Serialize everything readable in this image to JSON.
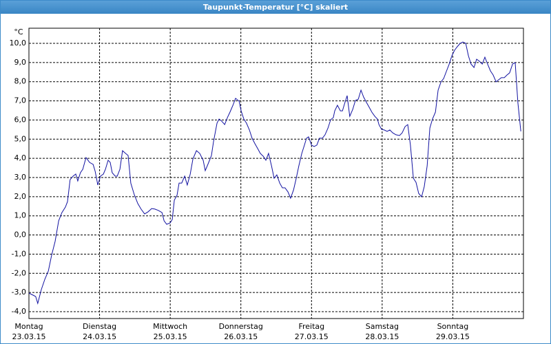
{
  "chart_data": {
    "type": "line",
    "title": "Taupunkt-Temperatur [°C] skaliert",
    "y_unit": "°C",
    "xlim": [
      0,
      168
    ],
    "ylim": [
      -4.36,
      10.79
    ],
    "xticks": [
      {
        "value": 0,
        "label": "Montag"
      },
      {
        "value": 24,
        "label": "Dienstag"
      },
      {
        "value": 48,
        "label": "Mittwoch"
      },
      {
        "value": 72,
        "label": "Donnerstag"
      },
      {
        "value": 96,
        "label": "Freitag"
      },
      {
        "value": 120,
        "label": "Samstag"
      },
      {
        "value": 144,
        "label": "Sonntag"
      }
    ],
    "xtick_dates": [
      "23.03.15",
      "24.03.15",
      "25.03.15",
      "26.03.15",
      "27.03.15",
      "28.03.15",
      "29.03.15"
    ],
    "yticks": [
      {
        "value": -4,
        "label": "-4,0"
      },
      {
        "value": -3,
        "label": "-3,0"
      },
      {
        "value": -2,
        "label": "-2,0"
      },
      {
        "value": -1,
        "label": "-1,0"
      },
      {
        "value": 0,
        "label": "0,0"
      },
      {
        "value": 1,
        "label": "1,0"
      },
      {
        "value": 2,
        "label": "2,0"
      },
      {
        "value": 3,
        "label": "3,0"
      },
      {
        "value": 4,
        "label": "4,0"
      },
      {
        "value": 5,
        "label": "5,0"
      },
      {
        "value": 6,
        "label": "6,0"
      },
      {
        "value": 7,
        "label": "7,0"
      },
      {
        "value": 8,
        "label": "8,0"
      },
      {
        "value": 9,
        "label": "9,0"
      },
      {
        "value": 10,
        "label": "10,0"
      }
    ],
    "grid": true,
    "series": [
      {
        "color": "#1010a0",
        "x": [
          0,
          1.4,
          2.3,
          3.0,
          4.2,
          5.4,
          6.6,
          7.7,
          8.9,
          10.1,
          11.2,
          12.4,
          13.1,
          14.0,
          15.0,
          15.9,
          16.6,
          17.5,
          18.3,
          19.4,
          20.6,
          21.8,
          22.5,
          23.4,
          24.3,
          25.3,
          26.0,
          26.9,
          27.6,
          28.3,
          29.3,
          30.0,
          30.9,
          31.8,
          32.8,
          33.7,
          34.6,
          35.8,
          37.0,
          38.1,
          39.3,
          40.5,
          41.7,
          42.8,
          44.0,
          45.2,
          45.9,
          46.8,
          48.0,
          48.7,
          49.4,
          50.3,
          51.0,
          51.9,
          52.9,
          53.8,
          54.8,
          55.7,
          56.9,
          58.0,
          59.2,
          59.9,
          60.8,
          62.0,
          62.7,
          63.9,
          64.6,
          65.5,
          66.5,
          67.4,
          68.3,
          69.3,
          70.2,
          71.4,
          72.1,
          73.0,
          73.9,
          74.9,
          75.8,
          76.8,
          77.7,
          78.6,
          79.6,
          80.5,
          81.4,
          82.4,
          83.3,
          84.2,
          85.2,
          86.1,
          87.0,
          88.0,
          88.9,
          89.9,
          90.8,
          91.7,
          92.7,
          93.6,
          94.3,
          95.0,
          96.0,
          96.9,
          97.8,
          98.7,
          99.7,
          100.6,
          101.6,
          102.5,
          103.4,
          103.9,
          104.8,
          105.8,
          106.5,
          107.2,
          108.1,
          109.0,
          110.0,
          110.9,
          111.9,
          112.8,
          113.7,
          114.7,
          115.6,
          116.5,
          117.5,
          118.4,
          118.9,
          119.8,
          120.7,
          121.7,
          122.6,
          123.6,
          124.7,
          125.9,
          126.8,
          127.8,
          128.7,
          129.6,
          130.6,
          131.5,
          132.4,
          133.4,
          134.3,
          135.3,
          136.2,
          137.1,
          138.1,
          139.0,
          140.0,
          140.9,
          141.8,
          142.7,
          143.7,
          144.6,
          145.5,
          146.5,
          147.4,
          148.4,
          149.3,
          150.2,
          151.2,
          152.1,
          153.0,
          154.0,
          154.9,
          155.8,
          156.8,
          157.7,
          158.7,
          159.6,
          160.5,
          161.5,
          162.4,
          163.3,
          164.3,
          165.2,
          166.1,
          167.1
        ],
        "values": [
          -3.03,
          -3.14,
          -3.21,
          -3.57,
          -2.85,
          -2.31,
          -1.88,
          -1.06,
          -0.34,
          0.74,
          1.17,
          1.46,
          1.74,
          2.89,
          3.07,
          3.18,
          2.82,
          3.25,
          3.43,
          4.04,
          3.79,
          3.68,
          3.32,
          2.61,
          3.07,
          3.18,
          3.43,
          3.9,
          3.79,
          3.25,
          3.07,
          3.07,
          3.43,
          4.4,
          4.26,
          4.15,
          2.71,
          2.1,
          1.64,
          1.35,
          1.1,
          1.21,
          1.38,
          1.35,
          1.28,
          1.17,
          0.74,
          0.56,
          0.63,
          0.81,
          1.82,
          2.07,
          2.71,
          2.71,
          3.07,
          2.61,
          3.18,
          3.97,
          4.4,
          4.26,
          3.9,
          3.36,
          3.68,
          4.15,
          4.87,
          5.84,
          6.05,
          5.94,
          5.76,
          6.12,
          6.41,
          6.77,
          7.13,
          6.98,
          6.48,
          6.05,
          5.84,
          5.48,
          5.05,
          4.76,
          4.51,
          4.26,
          4.11,
          3.9,
          4.26,
          3.61,
          2.96,
          3.14,
          2.71,
          2.46,
          2.46,
          2.25,
          1.92,
          2.35,
          2.96,
          3.61,
          4.26,
          4.69,
          5.05,
          5.12,
          4.69,
          4.62,
          4.69,
          5.05,
          5.05,
          5.23,
          5.58,
          6.02,
          6.12,
          6.48,
          6.77,
          6.48,
          6.48,
          6.84,
          7.27,
          6.19,
          6.55,
          7.02,
          7.09,
          7.56,
          7.2,
          6.91,
          6.66,
          6.41,
          6.19,
          6.05,
          5.76,
          5.51,
          5.48,
          5.41,
          5.48,
          5.33,
          5.23,
          5.19,
          5.33,
          5.66,
          5.76,
          4.69,
          2.96,
          2.75,
          2.17,
          1.99,
          2.53,
          3.61,
          5.58,
          6.05,
          6.41,
          7.56,
          7.99,
          8.17,
          8.53,
          8.89,
          9.35,
          9.64,
          9.82,
          10.0,
          10.07,
          10.0,
          9.35,
          8.92,
          8.74,
          9.17,
          9.07,
          8.92,
          9.28,
          8.92,
          8.56,
          8.35,
          7.99,
          8.1,
          8.21,
          8.21,
          8.35,
          8.46,
          8.92,
          8.99,
          6.91,
          5.41
        ]
      }
    ]
  }
}
